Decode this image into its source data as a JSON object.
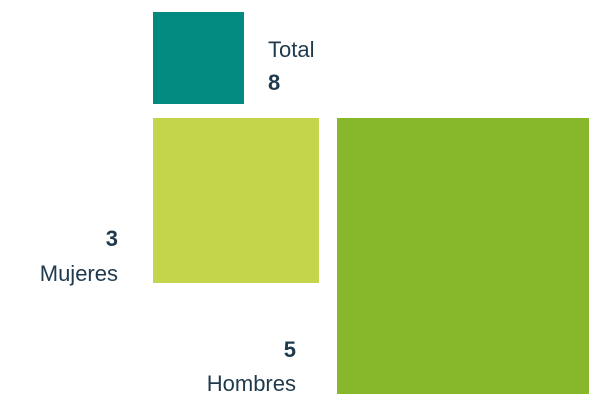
{
  "chart_data": {
    "type": "proportional-area",
    "title": "",
    "items": [
      {
        "key": "total",
        "label": "Total",
        "value": 8,
        "color": "#008a80"
      },
      {
        "key": "mujeres",
        "label": "Mujeres",
        "value": 3,
        "color": "#c4d44b"
      },
      {
        "key": "hombres",
        "label": "Hombres",
        "value": 5,
        "color": "#87b82b"
      }
    ]
  }
}
